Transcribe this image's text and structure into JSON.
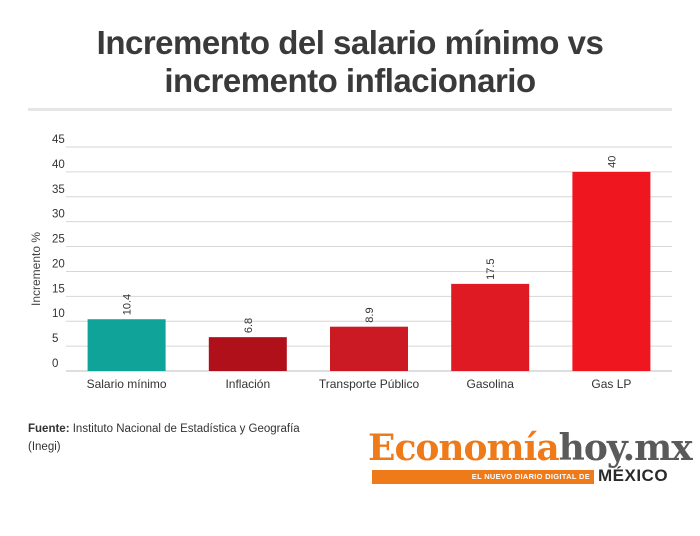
{
  "title_lines": [
    "Incremento del salario mínimo vs",
    "incremento inflacionario"
  ],
  "source": {
    "label": "Fuente:",
    "text": "Instituto Nacional de Estadística y Geografía (Inegi)"
  },
  "logo": {
    "part_a": "Economía",
    "part_b": "hoy.mx",
    "tagline": "EL NUEVO DIARIO DIGITAL DE",
    "country": "MÉXICO",
    "brand_color": "#ef7a1a"
  },
  "chart_data": {
    "type": "bar",
    "title": "Incremento del salario mínimo vs incremento inflacionario",
    "xlabel": "",
    "ylabel": "Incremento %",
    "categories": [
      "Salario mínimo",
      "Inflación",
      "Transporte Público",
      "Gasolina",
      "Gas LP"
    ],
    "values": [
      10.4,
      6.8,
      8.9,
      17.5,
      40
    ],
    "data_labels": [
      "10.4",
      "6.8",
      "8.9",
      "17.5",
      "40"
    ],
    "colors": [
      "#0fa39a",
      "#b0101a",
      "#cc1a24",
      "#df1a22",
      "#f0161f"
    ],
    "ylim": [
      0,
      45
    ],
    "yticks": [
      0,
      5,
      10,
      15,
      20,
      25,
      30,
      35,
      40,
      45
    ],
    "grid": true,
    "legend": "none"
  }
}
